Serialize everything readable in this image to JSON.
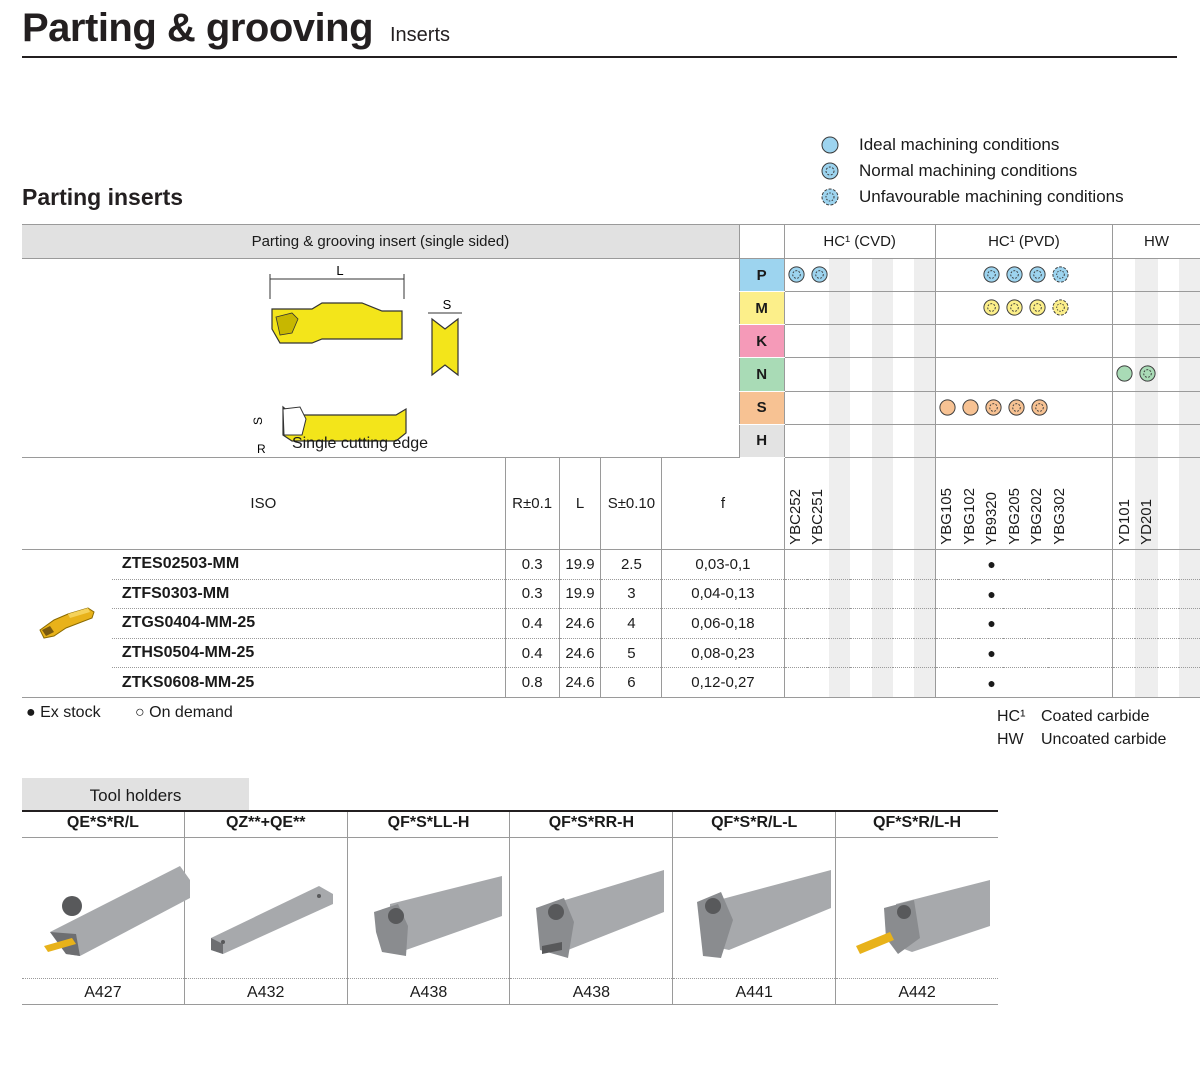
{
  "header": {
    "title": "Parting & grooving",
    "subtitle": "Inserts"
  },
  "section_title": "Parting inserts",
  "legend": [
    {
      "icon": "ideal-circle-icon",
      "label": "Ideal machining conditions"
    },
    {
      "icon": "normal-star-circle-icon",
      "label": "Normal machining conditions"
    },
    {
      "icon": "unfavourable-burst-icon",
      "label": "Unfavourable machining conditions"
    }
  ],
  "table": {
    "insert_header": "Parting & grooving insert (single sided)",
    "group_headers": {
      "cvd": "HC¹ (CVD)",
      "pvd": "HC¹ (PVD)",
      "hw": "HW"
    },
    "drawing_labels": {
      "L": "L",
      "S": "S",
      "S2": "S",
      "R": "R",
      "caption": "Single cutting edge"
    },
    "columns": {
      "iso": "ISO",
      "r": "R±0.1",
      "l": "L",
      "s": "S±0.10",
      "f": "f"
    },
    "grades": {
      "cvd": [
        "YBC252",
        "YBC251"
      ],
      "pvd": [
        "YBG105",
        "YBG102",
        "YB9320",
        "YBG205",
        "YBG202",
        "YBG302"
      ],
      "hw": [
        "YD101",
        "YD201"
      ]
    },
    "iso_groups": [
      {
        "letter": "P",
        "color": "#9dd4ef"
      },
      {
        "letter": "M",
        "color": "#fcef8a"
      },
      {
        "letter": "K",
        "color": "#f59ab8"
      },
      {
        "letter": "N",
        "color": "#a9dbb6"
      },
      {
        "letter": "S",
        "color": "#f7c293"
      },
      {
        "letter": "H",
        "color": "#e3e3e3"
      }
    ],
    "rows": [
      {
        "code": "ZTES02503-MM",
        "r": "0.3",
        "l": "19.9",
        "s": "2.5",
        "f": "0,03-0,1",
        "stock": "●"
      },
      {
        "code": "ZTFS0303-MM",
        "r": "0.3",
        "l": "19.9",
        "s": "3",
        "f": "0,04-0,13",
        "stock": "●"
      },
      {
        "code": "ZTGS0404-MM-25",
        "r": "0.4",
        "l": "24.6",
        "s": "4",
        "f": "0,06-0,18",
        "stock": "●"
      },
      {
        "code": "ZTHS0504-MM-25",
        "r": "0.4",
        "l": "24.6",
        "s": "5",
        "f": "0,08-0,23",
        "stock": "●"
      },
      {
        "code": "ZTKS0608-MM-25",
        "r": "0.8",
        "l": "24.6",
        "s": "6",
        "f": "0,12-0,27",
        "stock": "●"
      }
    ]
  },
  "notes": {
    "ex_stock": "● Ex stock",
    "on_demand": "○ On demand",
    "hc_key": "HC¹",
    "hc_value": "Coated carbide",
    "hw_key": "HW",
    "hw_value": "Uncoated carbide"
  },
  "tool_holders": {
    "title": "Tool holders",
    "items": [
      {
        "name": "QE*S*R/L",
        "ref": "A427"
      },
      {
        "name": "QZ**+QE**",
        "ref": "A432"
      },
      {
        "name": "QF*S*LL-H",
        "ref": "A438"
      },
      {
        "name": "QF*S*RR-H",
        "ref": "A438"
      },
      {
        "name": "QF*S*R/L-L",
        "ref": "A441"
      },
      {
        "name": "QF*S*R/L-H",
        "ref": "A442"
      }
    ]
  },
  "colors": {
    "ideal_icon": "#9dd4ef",
    "insert_yellow": "#f3e51a",
    "header_gray": "#e1e1e1",
    "stripe_gray": "#eeeeee"
  }
}
